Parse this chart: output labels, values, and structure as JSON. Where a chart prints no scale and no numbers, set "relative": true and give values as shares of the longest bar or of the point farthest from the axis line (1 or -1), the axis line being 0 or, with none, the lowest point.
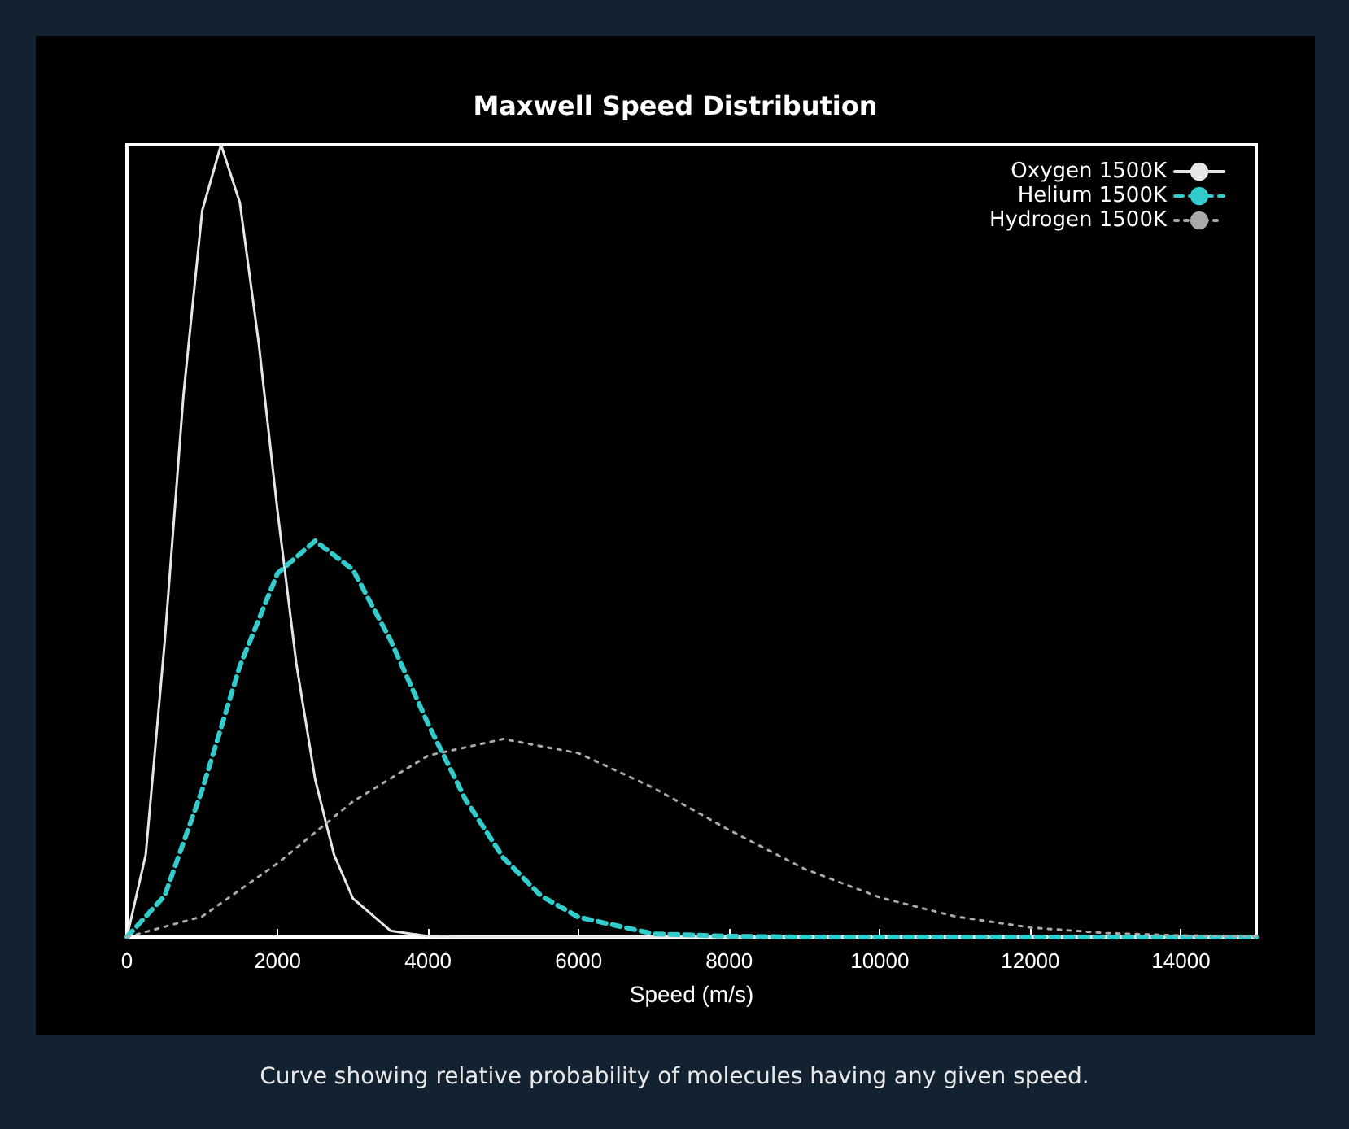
{
  "chart_data": {
    "type": "line",
    "title": "Maxwell Speed Distribution",
    "xlabel": "Speed (m/s)",
    "relative": true,
    "xlim": [
      0,
      15000
    ],
    "xticks": [
      0,
      2000,
      4000,
      6000,
      8000,
      10000,
      12000,
      14000
    ],
    "tick_labels": "x",
    "grid": false,
    "legend": "top right",
    "marker": "none",
    "annotations": [
      "Curve showing relative probability of molecules having any given speed."
    ],
    "series": [
      {
        "name": "Oxygen 1500K",
        "color": "#e6e6e6",
        "line_style": "solid",
        "x": [
          0,
          250,
          500,
          750,
          1000,
          1250,
          1500,
          1750,
          2000,
          2250,
          2500,
          2750,
          3000,
          3500,
          4000,
          4500,
          15000
        ],
        "values": [
          0,
          0.104,
          0.371,
          0.683,
          0.917,
          1,
          0.927,
          0.75,
          0.538,
          0.345,
          0.199,
          0.104,
          0.049,
          0.008,
          0.001,
          0,
          0
        ]
      },
      {
        "name": "Helium 1500K",
        "color": "#33cccc",
        "line_style": "dashed",
        "x": [
          0,
          500,
          1000,
          1500,
          2000,
          2500,
          3000,
          3500,
          4000,
          4500,
          5000,
          5500,
          6000,
          7000,
          8000,
          9000,
          15000
        ],
        "values": [
          0,
          0.052,
          0.186,
          0.342,
          0.459,
          0.5,
          0.464,
          0.375,
          0.269,
          0.173,
          0.1,
          0.052,
          0.025,
          0.004,
          0.001,
          0,
          0
        ]
      },
      {
        "name": "Hydrogen 1500K",
        "color": "#aaaaaa",
        "line_style": "dotted",
        "x": [
          0,
          1000,
          2000,
          3000,
          4000,
          5000,
          6000,
          7000,
          8000,
          9000,
          10000,
          11000,
          12000,
          13000,
          14000,
          15000
        ],
        "values": [
          0,
          0.026,
          0.093,
          0.171,
          0.229,
          0.25,
          0.232,
          0.188,
          0.135,
          0.086,
          0.05,
          0.026,
          0.012,
          0.005,
          0.002,
          0.001
        ]
      }
    ]
  }
}
